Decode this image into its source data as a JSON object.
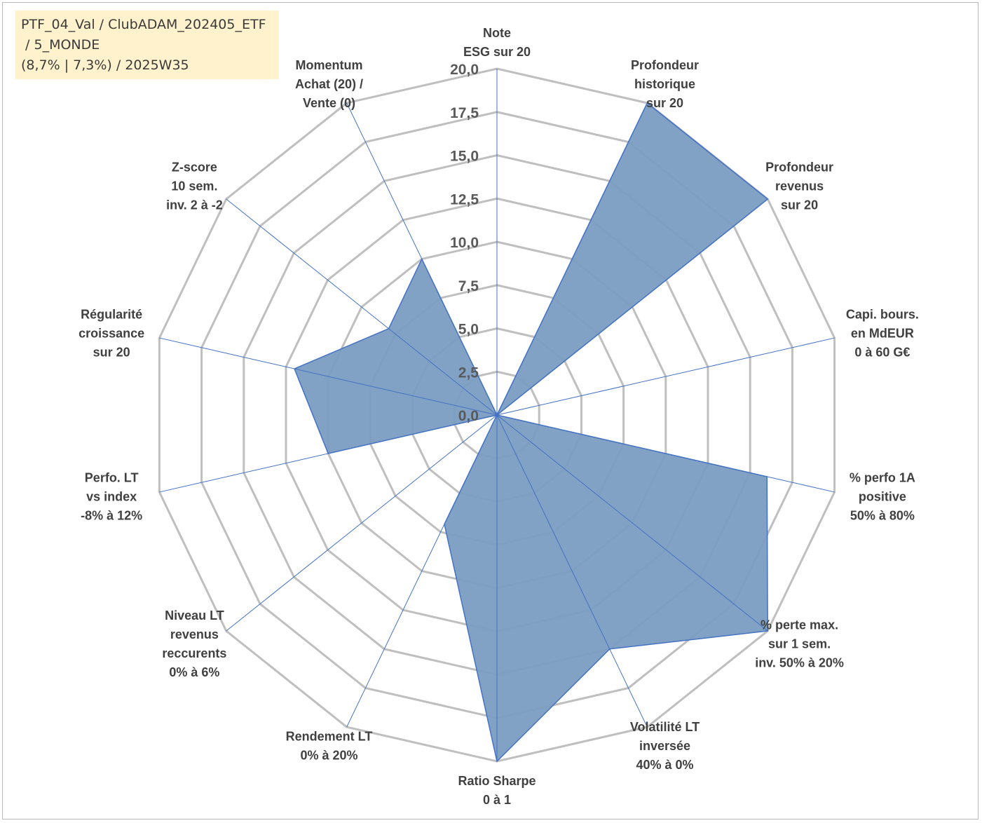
{
  "chart_data": {
    "type": "radar",
    "title": [
      "PTF_04_Val / ClubADAM_202405_ETF",
      " / 5_MONDE",
      "(8,7% | 7,3%) / 2025W35"
    ],
    "rlim": [
      0,
      20
    ],
    "ticks": [
      "0,0",
      "2,5",
      "5,0",
      "7,5",
      "10,0",
      "12,5",
      "15,0",
      "17,5",
      "20,0"
    ],
    "grid": true,
    "axes": [
      {
        "label": [
          "Note",
          "ESG sur 20"
        ],
        "value": 0
      },
      {
        "label": [
          "Profondeur",
          "historique",
          "sur 20"
        ],
        "value": 20
      },
      {
        "label": [
          "Profondeur",
          "revenus",
          "sur 20"
        ],
        "value": 20
      },
      {
        "label": [
          "Capi. bours.",
          "en MdEUR",
          "0 à 60 G€"
        ],
        "value": 0
      },
      {
        "label": [
          "% perfo 1A",
          "positive",
          "50% à 80%"
        ],
        "value": 16
      },
      {
        "label": [
          "% perte max.",
          "sur 1 sem.",
          "inv. 50% à 20%"
        ],
        "value": 20
      },
      {
        "label": [
          "Volatilité LT",
          "inversée",
          "40% à 0%"
        ],
        "value": 15
      },
      {
        "label": [
          "Ratio Sharpe",
          "0 à 1"
        ],
        "value": 20
      },
      {
        "label": [
          "Rendement LT",
          "0% à 20%"
        ],
        "value": 7
      },
      {
        "label": [
          "Niveau LT",
          "revenus",
          "reccurents",
          "0% à 6%"
        ],
        "value": 0
      },
      {
        "label": [
          "Perfo. LT",
          "vs index",
          "-8% à 12%"
        ],
        "value": 10
      },
      {
        "label": [
          "Régularité",
          "croissance",
          "sur 20"
        ],
        "value": 12
      },
      {
        "label": [
          "Z-score",
          "10 sem.",
          "inv. 2 à -2"
        ],
        "value": 8
      },
      {
        "label": [
          "Momentum",
          "Achat (20) /",
          "Vente (0)"
        ],
        "value": 10
      }
    ],
    "colors": {
      "fill": "#7a9cc2",
      "stroke": "#4472c4",
      "grid": "#bfbfbf",
      "spoke": "#4472c4"
    }
  }
}
